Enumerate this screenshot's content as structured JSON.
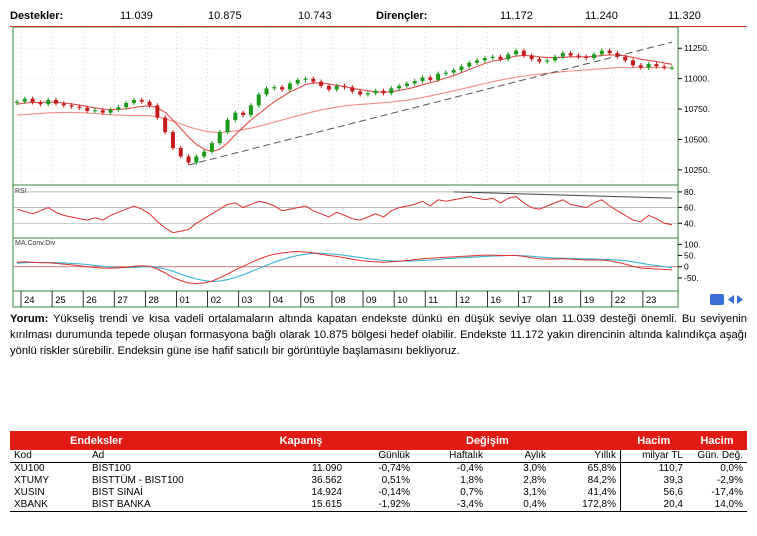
{
  "levels": {
    "support_label": "Destekler:",
    "supports": [
      "11.039",
      "10.875",
      "10.743"
    ],
    "resistance_label": "Dirençler:",
    "resistances": [
      "11.172",
      "11.240",
      "11.320"
    ]
  },
  "chart_data": [
    {
      "type": "candlestick",
      "y_ticks": [
        "11250.",
        "11000.",
        "10750.",
        "10500.",
        "10250."
      ],
      "ylim": [
        10150,
        11400
      ],
      "x_ticks": [
        "24",
        "25",
        "26",
        "27",
        "28",
        "01",
        "02",
        "03",
        "04",
        "05",
        "08",
        "09",
        "10",
        "11",
        "12",
        "16",
        "17",
        "18",
        "19",
        "22",
        "23"
      ],
      "x_values": [
        0,
        1,
        2,
        3,
        4,
        5,
        6,
        7,
        8,
        9,
        10,
        11,
        12,
        13,
        14,
        15,
        16,
        17,
        18,
        19,
        20,
        21,
        22,
        23,
        24,
        25,
        26,
        27,
        28,
        29,
        30,
        31,
        32,
        33,
        34,
        35,
        36,
        37,
        38,
        39,
        40,
        41,
        42,
        43,
        44,
        45,
        46,
        47,
        48,
        49,
        50,
        51,
        52,
        53,
        54,
        55,
        56,
        57,
        58,
        59,
        60,
        61,
        62,
        63,
        64,
        65,
        66,
        67,
        68,
        69,
        70,
        71,
        72,
        73,
        74,
        75,
        76,
        77,
        78,
        79,
        80,
        81,
        82,
        83,
        84
      ],
      "close": [
        10810,
        10835,
        10805,
        10790,
        10825,
        10795,
        10780,
        10770,
        10760,
        10735,
        10740,
        10720,
        10745,
        10765,
        10800,
        10825,
        10810,
        10780,
        10680,
        10560,
        10430,
        10360,
        10310,
        10360,
        10400,
        10470,
        10560,
        10660,
        10720,
        10700,
        10780,
        10870,
        10920,
        10930,
        10910,
        10960,
        10990,
        11000,
        10975,
        10940,
        10910,
        10940,
        10930,
        10895,
        10870,
        10880,
        10900,
        10880,
        10920,
        10940,
        10960,
        10980,
        11010,
        10990,
        11040,
        11050,
        11070,
        11100,
        11130,
        11150,
        11170,
        11180,
        11160,
        11200,
        11230,
        11190,
        11160,
        11140,
        11150,
        11180,
        11210,
        11190,
        11180,
        11170,
        11200,
        11230,
        11210,
        11180,
        11150,
        11110,
        11090,
        11120,
        11100,
        11090,
        11090
      ],
      "sma_short": [
        10790,
        10800,
        10805,
        10805,
        10808,
        10805,
        10800,
        10792,
        10782,
        10770,
        10760,
        10750,
        10745,
        10746,
        10752,
        10763,
        10772,
        10777,
        10761,
        10722,
        10660,
        10590,
        10520,
        10460,
        10420,
        10400,
        10420,
        10470,
        10540,
        10600,
        10660,
        10710,
        10760,
        10810,
        10850,
        10890,
        10920,
        10950,
        10965,
        10965,
        10955,
        10945,
        10935,
        10920,
        10910,
        10900,
        10892,
        10888,
        10893,
        10903,
        10915,
        10930,
        10950,
        10965,
        10985,
        11005,
        11025,
        11050,
        11075,
        11100,
        11125,
        11145,
        11155,
        11170,
        11185,
        11190,
        11188,
        11180,
        11175,
        11172,
        11175,
        11180,
        11180,
        11180,
        11183,
        11190,
        11195,
        11195,
        11188,
        11175,
        11160,
        11150,
        11140,
        11128,
        11118
      ],
      "sma_long": [
        10700,
        10705,
        10710,
        10714,
        10718,
        10720,
        10722,
        10722,
        10720,
        10717,
        10713,
        10708,
        10703,
        10700,
        10698,
        10698,
        10698,
        10695,
        10685,
        10670,
        10650,
        10628,
        10605,
        10585,
        10570,
        10560,
        10558,
        10562,
        10570,
        10580,
        10593,
        10608,
        10625,
        10643,
        10660,
        10678,
        10695,
        10712,
        10728,
        10742,
        10755,
        10766,
        10775,
        10782,
        10788,
        10792,
        10797,
        10802,
        10808,
        10815,
        10823,
        10833,
        10845,
        10858,
        10872,
        10886,
        10900,
        10915,
        10930,
        10945,
        10960,
        10975,
        10988,
        11000,
        11012,
        11022,
        11030,
        11037,
        11043,
        11050,
        11057,
        11063,
        11068,
        11072,
        11077,
        11082,
        11087,
        11090,
        11092,
        11092,
        11091,
        11091,
        11090,
        11090,
        11089
      ],
      "trend_line": {
        "from_x": 22,
        "from_y": 10290,
        "to_x": 84,
        "to_y": 11300
      }
    },
    {
      "type": "line",
      "name": "RSI",
      "y_ticks": [
        "80.",
        "60.",
        "40."
      ],
      "ylim": [
        25,
        85
      ],
      "values": [
        58,
        55,
        52,
        56,
        60,
        54,
        50,
        48,
        46,
        44,
        47,
        44,
        50,
        54,
        58,
        62,
        58,
        52,
        42,
        34,
        28,
        30,
        32,
        40,
        46,
        52,
        58,
        64,
        66,
        60,
        64,
        68,
        66,
        62,
        56,
        58,
        60,
        62,
        56,
        52,
        48,
        54,
        50,
        46,
        44,
        48,
        52,
        48,
        56,
        60,
        62,
        64,
        68,
        62,
        70,
        68,
        70,
        72,
        74,
        72,
        70,
        72,
        66,
        72,
        74,
        66,
        60,
        58,
        62,
        66,
        70,
        64,
        62,
        60,
        66,
        70,
        62,
        56,
        50,
        44,
        42,
        50,
        46,
        40,
        38
      ]
    },
    {
      "type": "line",
      "name": "MA.Conv.Div",
      "y_ticks": [
        "100.",
        "50.",
        "0",
        "-50."
      ],
      "ylim": [
        -95,
        115
      ],
      "macd": [
        20,
        22,
        20,
        18,
        18,
        15,
        12,
        8,
        4,
        0,
        -4,
        -6,
        -6,
        -5,
        -2,
        2,
        4,
        2,
        -10,
        -28,
        -48,
        -62,
        -72,
        -75,
        -72,
        -64,
        -50,
        -32,
        -14,
        2,
        18,
        34,
        46,
        56,
        62,
        66,
        68,
        66,
        62,
        56,
        50,
        46,
        40,
        34,
        28,
        24,
        22,
        20,
        22,
        24,
        28,
        32,
        36,
        38,
        40,
        42,
        44,
        46,
        48,
        50,
        52,
        52,
        50,
        50,
        50,
        46,
        40,
        36,
        34,
        34,
        36,
        34,
        32,
        30,
        30,
        30,
        26,
        20,
        12,
        2,
        -6,
        -8,
        -10,
        -12,
        -14
      ],
      "signal": [
        16,
        18,
        19,
        19,
        19,
        18,
        17,
        15,
        13,
        10,
        6,
        2,
        -2,
        -4,
        -4,
        -3,
        -1,
        0,
        -3,
        -10,
        -20,
        -33,
        -45,
        -55,
        -62,
        -66,
        -64,
        -58,
        -48,
        -36,
        -22,
        -8,
        6,
        20,
        32,
        42,
        50,
        56,
        60,
        60,
        58,
        55,
        51,
        46,
        41,
        36,
        32,
        28,
        26,
        25,
        25,
        26,
        28,
        30,
        33,
        36,
        38,
        40,
        42,
        44,
        46,
        48,
        49,
        50,
        50,
        49,
        47,
        44,
        41,
        39,
        38,
        37,
        36,
        35,
        34,
        33,
        32,
        30,
        27,
        22,
        16,
        10,
        5,
        0,
        -4
      ]
    }
  ],
  "commentary": {
    "lead": "Yorum:",
    "text": " Yükseliş trendi ve kısa vadeli ortalamaların altında kapatan endekste dünkü en düşük seviye olan 11.039 desteği önemli. Bu seviyenin kırılması durumunda tepede oluşan formasyona bağlı olarak 10.875 bölgesi hedef olabilir. Endekste 11.172 yakın direncinin altında kalındıkça aşağı yönlü riskler sürebilir. Endeksin güne ise hafif satıcılı bir görüntüyle başlamasını bekliyoruz."
  },
  "table": {
    "header": {
      "endeksler": "Endeksler",
      "kapanis": "Kapanış",
      "degisim": "Değişim",
      "hacim1": "Hacim",
      "hacim2": "Hacim"
    },
    "subheader": {
      "kod": "Kod",
      "ad": "Ad",
      "gunluk": "Günlük",
      "haftalik": "Haftalık",
      "aylik": "Aylık",
      "yillik": "Yıllık",
      "milyar": "milyar TL",
      "gun_deg": "Gün. Değ."
    },
    "rows": [
      {
        "kod": "XU100",
        "ad": "BIST100",
        "kapanis": "11.090",
        "gunluk": "-0,74%",
        "haftalik": "-0,4%",
        "aylik": "3,0%",
        "yillik": "65,8%",
        "hacim": "110,7",
        "gun_deg": "0,0%"
      },
      {
        "kod": "XTUMY",
        "ad": "BISTTÜM - BIST100",
        "kapanis": "36.562",
        "gunluk": "0,51%",
        "haftalik": "1,8%",
        "aylik": "2,8%",
        "yillik": "84,2%",
        "hacim": "39,3",
        "gun_deg": "-2,9%"
      },
      {
        "kod": "XUSIN",
        "ad": "BIST SINAİ",
        "kapanis": "14.924",
        "gunluk": "-0,14%",
        "haftalik": "0,7%",
        "aylik": "3,1%",
        "yillik": "41,4%",
        "hacim": "56,6",
        "gun_deg": "-17,4%"
      },
      {
        "kod": "XBANK",
        "ad": "BIST BANKA",
        "kapanis": "15.615",
        "gunluk": "-1,92%",
        "haftalik": "-3,4%",
        "aylik": "0,4%",
        "yillik": "172,8%",
        "hacim": "20,4",
        "gun_deg": "14,0%"
      }
    ]
  }
}
